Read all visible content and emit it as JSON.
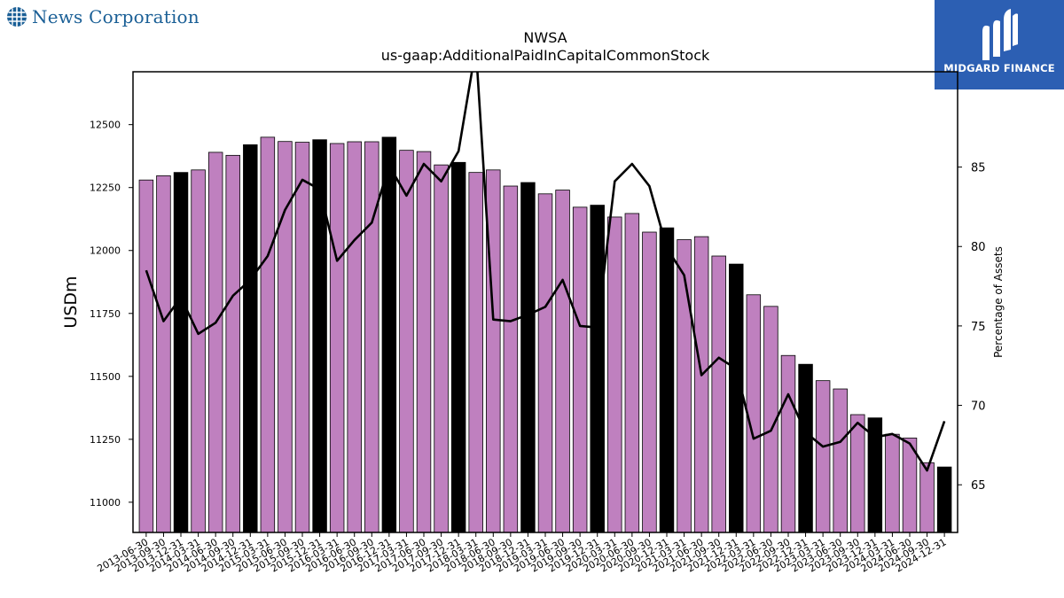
{
  "header": {
    "company_name": "News Corporation",
    "company_logo_icon": "globe-grid-icon",
    "brand_name": "MIDGARD FINANCE",
    "brand_icon": "midgard-m-logo-icon",
    "brand_color": "#2c5fb3",
    "company_color": "#1a5f96"
  },
  "chart_data": {
    "type": "bar",
    "title": "NWSA",
    "subtitle": "us-gaap:AdditionalPaidInCapitalCommonStock",
    "ylabel": "USDm",
    "y2label": "Percentage of Assets",
    "ylim": [
      10880,
      12710
    ],
    "y2lim": [
      62,
      91
    ],
    "yticks": [
      11000,
      11250,
      11500,
      11750,
      12000,
      12250,
      12500
    ],
    "y2ticks": [
      65,
      70,
      75,
      80,
      85
    ],
    "grid": false,
    "bar_color": "#bf80bf",
    "highlight_color": "#000000",
    "line_color": "#000000",
    "categories": [
      "2013-06-30",
      "2013-09-30",
      "2013-12-31",
      "2014-03-31",
      "2014-06-30",
      "2014-09-30",
      "2014-12-31",
      "2015-03-31",
      "2015-06-30",
      "2015-09-30",
      "2015-12-31",
      "2016-03-31",
      "2016-06-30",
      "2016-09-30",
      "2016-12-31",
      "2017-03-31",
      "2017-06-30",
      "2017-09-30",
      "2017-12-31",
      "2018-03-31",
      "2018-06-30",
      "2018-09-30",
      "2018-12-31",
      "2019-03-31",
      "2019-06-30",
      "2019-09-30",
      "2019-12-31",
      "2020-03-31",
      "2020-06-30",
      "2020-09-30",
      "2020-12-31",
      "2021-03-31",
      "2021-06-30",
      "2021-09-30",
      "2021-12-31",
      "2022-03-31",
      "2022-06-30",
      "2022-09-30",
      "2022-12-31",
      "2023-03-31",
      "2023-06-30",
      "2023-09-30",
      "2023-12-31",
      "2024-03-31",
      "2024-06-30",
      "2024-09-30",
      "2024-12-31"
    ],
    "series": [
      {
        "type": "bar",
        "axis": "left",
        "values": [
          12280,
          12297,
          12310,
          12320,
          12390,
          12378,
          12420,
          12450,
          12433,
          12430,
          12440,
          12425,
          12432,
          12432,
          12450,
          12398,
          12393,
          12340,
          12350,
          12310,
          12320,
          12256,
          12270,
          12225,
          12240,
          12172,
          12180,
          12133,
          12147,
          12073,
          12090,
          12043,
          12055,
          11978,
          11946,
          11824,
          11778,
          11583,
          11548,
          11483,
          11450,
          11348,
          11335,
          11270,
          11255,
          11157,
          11140
        ],
        "highlighted": [
          false,
          false,
          true,
          false,
          false,
          false,
          true,
          false,
          false,
          false,
          true,
          false,
          false,
          false,
          true,
          false,
          false,
          false,
          true,
          false,
          false,
          false,
          true,
          false,
          false,
          false,
          true,
          false,
          false,
          false,
          true,
          false,
          false,
          false,
          true,
          false,
          false,
          false,
          true,
          false,
          false,
          false,
          true,
          false,
          false,
          false,
          true
        ]
      },
      {
        "type": "line",
        "axis": "right",
        "values": [
          78.5,
          75.3,
          76.8,
          74.5,
          75.2,
          76.9,
          77.9,
          79.4,
          82.3,
          84.2,
          83.6,
          79.1,
          80.4,
          81.5,
          85.1,
          83.2,
          85.2,
          84.1,
          86.0,
          92.5,
          75.4,
          75.3,
          75.7,
          76.2,
          77.9,
          75.0,
          74.9,
          84.1,
          85.2,
          83.8,
          79.9,
          78.2,
          71.9,
          73.0,
          72.3,
          67.9,
          68.4,
          70.7,
          68.3,
          67.4,
          67.7,
          68.9,
          68.0,
          68.2,
          67.6,
          65.9,
          69.0
        ]
      }
    ]
  }
}
